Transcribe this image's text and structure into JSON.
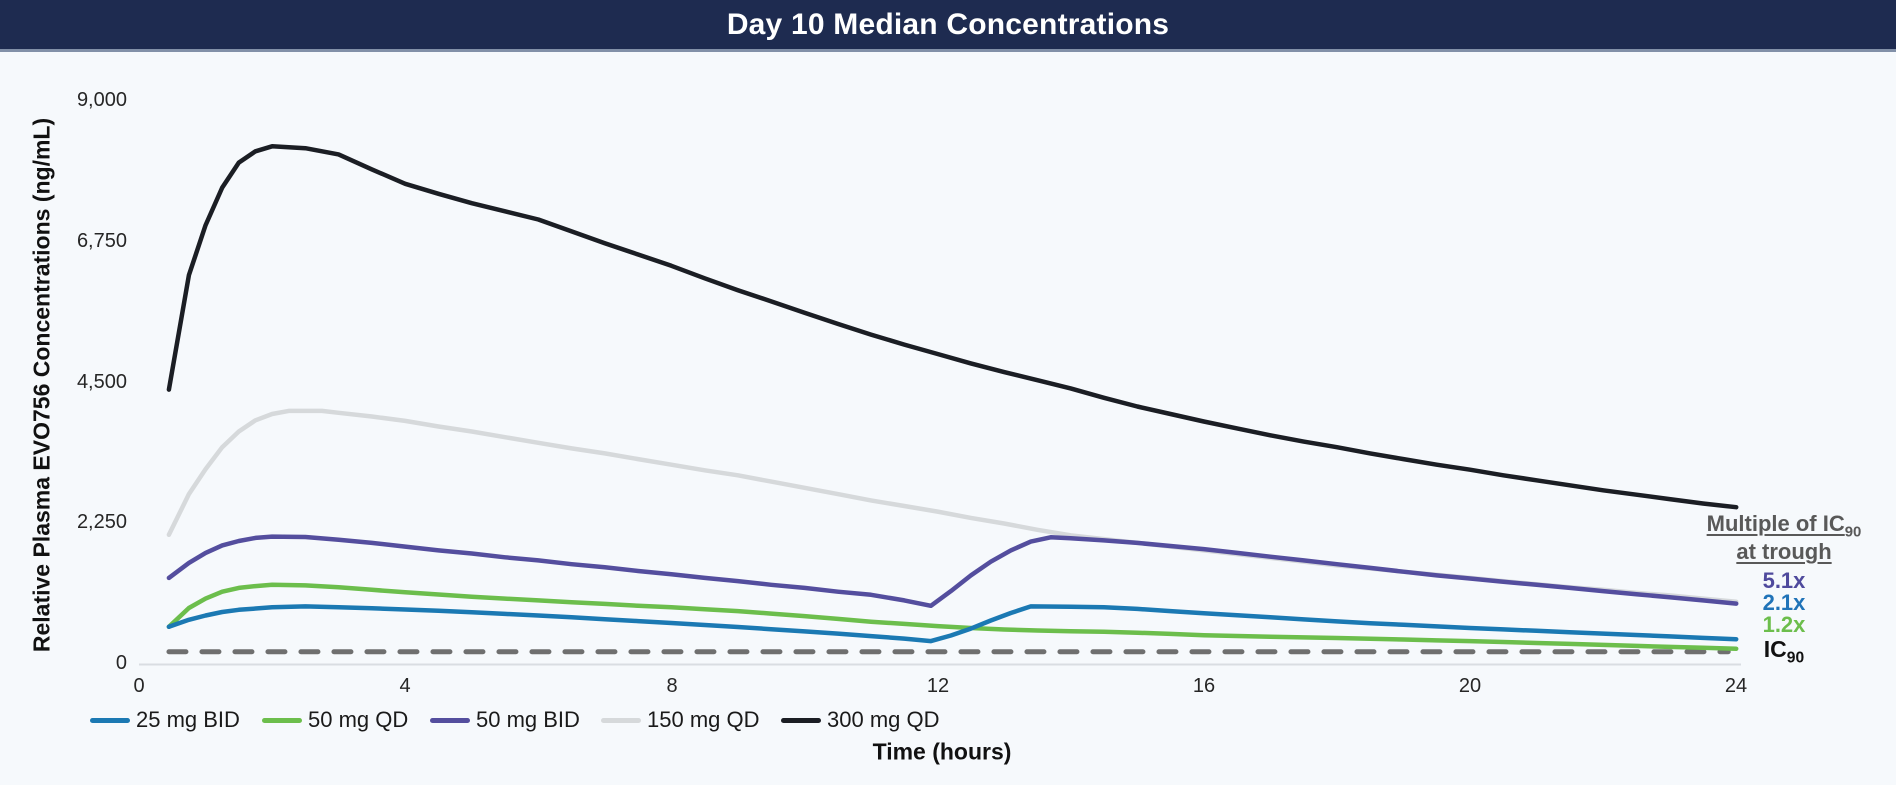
{
  "title_bar": {
    "title": "Day 10 Median Concentrations",
    "bg_color": "#1e2b50"
  },
  "axes": {
    "y": {
      "label": "Relative Plasma EVO756 Concentrations (ng/mL)",
      "ticks": [
        "9,000",
        "6,750",
        "4,500",
        "2,250",
        "0"
      ]
    },
    "x": {
      "label": "Time (hours)",
      "ticks": [
        "0",
        "4",
        "8",
        "12",
        "16",
        "20",
        "24"
      ]
    }
  },
  "legend": {
    "items": [
      {
        "label": "25 mg BID",
        "color": "#1b79b3"
      },
      {
        "label": "50 mg QD",
        "color": "#6cbe4c"
      },
      {
        "label": "50 mg BID",
        "color": "#544e9e"
      },
      {
        "label": "150 mg QD",
        "color": "#d6d9db"
      },
      {
        "label": "300 mg QD",
        "color": "#1b1e24"
      }
    ]
  },
  "annotations": {
    "heading_prefix": "Multiple of IC",
    "heading_sub": "90",
    "heading_line2": "at trough",
    "items": [
      {
        "label": "5.1x",
        "color": "#4f4a9d"
      },
      {
        "label": "2.1x",
        "color": "#2073b8"
      },
      {
        "label": "1.2x",
        "color": "#6cbe4c"
      }
    ],
    "ic_prefix": "IC",
    "ic_sub": "90"
  },
  "chart_data": {
    "type": "line",
    "title": "Day 10 Median Concentrations",
    "xlabel": "Time (hours)",
    "ylabel": "Relative Plasma EVO756 Concentrations (ng/mL)",
    "xlim": [
      0,
      24
    ],
    "ylim": [
      0,
      9000
    ],
    "grid": false,
    "legend_position": "bottom",
    "ic90_reference": {
      "value": 180,
      "t_start": 0.45,
      "t_end": 23.88,
      "color": "#6f6f6f",
      "style": "dashed"
    },
    "series": [
      {
        "name": "25 mg BID",
        "color": "#1b79b3",
        "points": [
          [
            0.45,
            578
          ],
          [
            0.75,
            690
          ],
          [
            1,
            760
          ],
          [
            1.25,
            815
          ],
          [
            1.5,
            850
          ],
          [
            2,
            890
          ],
          [
            2.5,
            905
          ],
          [
            3,
            890
          ],
          [
            3.5,
            875
          ],
          [
            4,
            855
          ],
          [
            4.5,
            835
          ],
          [
            5,
            810
          ],
          [
            5.5,
            785
          ],
          [
            6,
            760
          ],
          [
            6.5,
            730
          ],
          [
            7,
            700
          ],
          [
            7.5,
            670
          ],
          [
            8,
            640
          ],
          [
            8.5,
            608
          ],
          [
            9,
            575
          ],
          [
            9.5,
            540
          ],
          [
            10,
            505
          ],
          [
            10.5,
            470
          ],
          [
            11,
            430
          ],
          [
            11.5,
            390
          ],
          [
            11.9,
            350
          ],
          [
            12.2,
            440
          ],
          [
            12.5,
            550
          ],
          [
            12.8,
            680
          ],
          [
            13.1,
            800
          ],
          [
            13.4,
            905
          ],
          [
            14,
            900
          ],
          [
            14.5,
            890
          ],
          [
            15,
            865
          ],
          [
            15.5,
            830
          ],
          [
            16,
            795
          ],
          [
            16.5,
            762
          ],
          [
            17,
            730
          ],
          [
            17.5,
            697
          ],
          [
            18,
            665
          ],
          [
            18.5,
            637
          ],
          [
            19,
            610
          ],
          [
            19.5,
            585
          ],
          [
            20,
            560
          ],
          [
            20.5,
            537
          ],
          [
            21,
            515
          ],
          [
            21.5,
            492
          ],
          [
            22,
            470
          ],
          [
            22.5,
            447
          ],
          [
            23,
            425
          ],
          [
            23.5,
            402
          ],
          [
            24,
            380
          ]
        ]
      },
      {
        "name": "50 mg QD",
        "color": "#6cbe4c",
        "points": [
          [
            0.45,
            578
          ],
          [
            0.75,
            880
          ],
          [
            1,
            1030
          ],
          [
            1.25,
            1140
          ],
          [
            1.5,
            1200
          ],
          [
            1.75,
            1230
          ],
          [
            2,
            1250
          ],
          [
            2.5,
            1240
          ],
          [
            3,
            1210
          ],
          [
            3.5,
            1170
          ],
          [
            4,
            1130
          ],
          [
            4.5,
            1095
          ],
          [
            5,
            1060
          ],
          [
            5.5,
            1030
          ],
          [
            6,
            1000
          ],
          [
            6.5,
            970
          ],
          [
            7,
            945
          ],
          [
            7.5,
            915
          ],
          [
            8,
            890
          ],
          [
            8.5,
            860
          ],
          [
            9,
            830
          ],
          [
            9.5,
            790
          ],
          [
            10,
            750
          ],
          [
            10.5,
            705
          ],
          [
            11,
            660
          ],
          [
            11.5,
            625
          ],
          [
            12,
            590
          ],
          [
            12.5,
            560
          ],
          [
            13,
            535
          ],
          [
            13.5,
            520
          ],
          [
            14,
            508
          ],
          [
            14.5,
            498
          ],
          [
            15,
            485
          ],
          [
            15.5,
            465
          ],
          [
            16,
            445
          ],
          [
            16.5,
            432
          ],
          [
            17,
            420
          ],
          [
            17.5,
            410
          ],
          [
            18,
            400
          ],
          [
            18.5,
            388
          ],
          [
            19,
            375
          ],
          [
            19.5,
            362
          ],
          [
            20,
            350
          ],
          [
            20.5,
            335
          ],
          [
            21,
            320
          ],
          [
            21.5,
            305
          ],
          [
            22,
            290
          ],
          [
            22.5,
            274
          ],
          [
            23,
            258
          ],
          [
            23.5,
            243
          ],
          [
            24,
            228
          ]
        ]
      },
      {
        "name": "50 mg BID",
        "color": "#544e9e",
        "points": [
          [
            0.45,
            1360
          ],
          [
            0.75,
            1600
          ],
          [
            1,
            1760
          ],
          [
            1.25,
            1880
          ],
          [
            1.5,
            1950
          ],
          [
            1.75,
            2000
          ],
          [
            2,
            2020
          ],
          [
            2.5,
            2015
          ],
          [
            3,
            1970
          ],
          [
            3.5,
            1920
          ],
          [
            4,
            1860
          ],
          [
            4.5,
            1800
          ],
          [
            5,
            1750
          ],
          [
            5.5,
            1690
          ],
          [
            6,
            1640
          ],
          [
            6.5,
            1580
          ],
          [
            7,
            1530
          ],
          [
            7.5,
            1470
          ],
          [
            8,
            1420
          ],
          [
            8.5,
            1360
          ],
          [
            9,
            1310
          ],
          [
            9.5,
            1250
          ],
          [
            10,
            1200
          ],
          [
            10.5,
            1140
          ],
          [
            11,
            1090
          ],
          [
            11.5,
            1000
          ],
          [
            11.9,
            915
          ],
          [
            12.2,
            1150
          ],
          [
            12.5,
            1400
          ],
          [
            12.8,
            1620
          ],
          [
            13.1,
            1800
          ],
          [
            13.4,
            1940
          ],
          [
            13.7,
            2010
          ],
          [
            14,
            1995
          ],
          [
            14.5,
            1960
          ],
          [
            15,
            1920
          ],
          [
            15.5,
            1870
          ],
          [
            16,
            1820
          ],
          [
            16.5,
            1760
          ],
          [
            17,
            1700
          ],
          [
            17.5,
            1640
          ],
          [
            18,
            1580
          ],
          [
            18.5,
            1520
          ],
          [
            19,
            1460
          ],
          [
            19.5,
            1400
          ],
          [
            20,
            1350
          ],
          [
            20.5,
            1300
          ],
          [
            21,
            1250
          ],
          [
            21.5,
            1200
          ],
          [
            22,
            1150
          ],
          [
            22.5,
            1100
          ],
          [
            23,
            1050
          ],
          [
            23.5,
            1000
          ],
          [
            24,
            950
          ]
        ]
      },
      {
        "name": "150 mg QD",
        "color": "#d6d9db",
        "points": [
          [
            0.45,
            2050
          ],
          [
            0.75,
            2700
          ],
          [
            1,
            3100
          ],
          [
            1.25,
            3450
          ],
          [
            1.5,
            3700
          ],
          [
            1.75,
            3880
          ],
          [
            2,
            3980
          ],
          [
            2.25,
            4030
          ],
          [
            2.75,
            4030
          ],
          [
            3,
            4000
          ],
          [
            3.5,
            3940
          ],
          [
            4,
            3870
          ],
          [
            4.5,
            3780
          ],
          [
            5,
            3700
          ],
          [
            5.5,
            3610
          ],
          [
            6,
            3520
          ],
          [
            6.5,
            3430
          ],
          [
            7,
            3350
          ],
          [
            7.5,
            3260
          ],
          [
            8,
            3170
          ],
          [
            8.5,
            3080
          ],
          [
            9,
            3000
          ],
          [
            9.5,
            2900
          ],
          [
            10,
            2800
          ],
          [
            10.5,
            2700
          ],
          [
            11,
            2600
          ],
          [
            11.5,
            2510
          ],
          [
            12,
            2420
          ],
          [
            12.5,
            2320
          ],
          [
            13,
            2230
          ],
          [
            13.5,
            2130
          ],
          [
            14,
            2040
          ],
          [
            14.5,
            1980
          ],
          [
            15,
            1920
          ],
          [
            15.5,
            1860
          ],
          [
            16,
            1800
          ],
          [
            16.5,
            1740
          ],
          [
            17,
            1680
          ],
          [
            17.5,
            1620
          ],
          [
            18,
            1560
          ],
          [
            18.5,
            1510
          ],
          [
            19,
            1460
          ],
          [
            19.5,
            1410
          ],
          [
            20,
            1360
          ],
          [
            20.5,
            1310
          ],
          [
            21,
            1260
          ],
          [
            21.5,
            1210
          ],
          [
            22,
            1170
          ],
          [
            22.5,
            1120
          ],
          [
            23,
            1080
          ],
          [
            23.5,
            1030
          ],
          [
            24,
            980
          ]
        ]
      },
      {
        "name": "300 mg QD",
        "color": "#1b1e24",
        "points": [
          [
            0.45,
            4370
          ],
          [
            0.75,
            6200
          ],
          [
            1,
            7000
          ],
          [
            1.25,
            7600
          ],
          [
            1.5,
            8000
          ],
          [
            1.75,
            8180
          ],
          [
            2,
            8260
          ],
          [
            2.5,
            8230
          ],
          [
            3,
            8130
          ],
          [
            3.5,
            7890
          ],
          [
            4,
            7660
          ],
          [
            4.5,
            7500
          ],
          [
            5,
            7350
          ],
          [
            5.5,
            7220
          ],
          [
            6,
            7090
          ],
          [
            6.5,
            6900
          ],
          [
            7,
            6710
          ],
          [
            7.5,
            6530
          ],
          [
            8,
            6350
          ],
          [
            8.5,
            6150
          ],
          [
            9,
            5960
          ],
          [
            9.5,
            5780
          ],
          [
            10,
            5600
          ],
          [
            10.5,
            5420
          ],
          [
            11,
            5250
          ],
          [
            11.5,
            5090
          ],
          [
            12,
            4940
          ],
          [
            12.5,
            4790
          ],
          [
            13,
            4650
          ],
          [
            13.5,
            4520
          ],
          [
            14,
            4390
          ],
          [
            14.5,
            4240
          ],
          [
            15,
            4100
          ],
          [
            15.5,
            3980
          ],
          [
            16,
            3860
          ],
          [
            16.5,
            3750
          ],
          [
            17,
            3640
          ],
          [
            17.5,
            3540
          ],
          [
            18,
            3450
          ],
          [
            18.5,
            3350
          ],
          [
            19,
            3260
          ],
          [
            19.5,
            3170
          ],
          [
            20,
            3090
          ],
          [
            20.5,
            3000
          ],
          [
            21,
            2920
          ],
          [
            21.5,
            2840
          ],
          [
            22,
            2760
          ],
          [
            22.5,
            2690
          ],
          [
            23,
            2620
          ],
          [
            23.5,
            2550
          ],
          [
            24,
            2490
          ]
        ]
      }
    ]
  }
}
